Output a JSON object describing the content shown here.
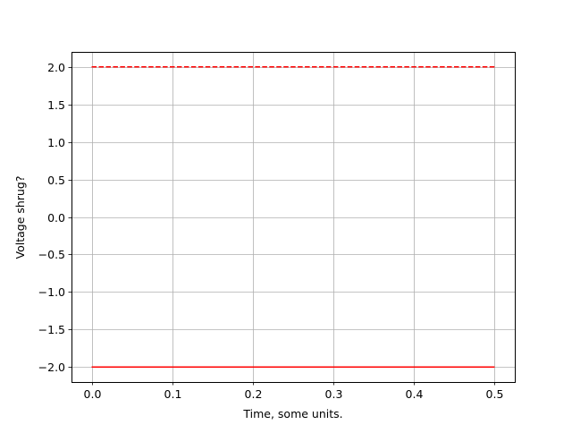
{
  "chart_data": {
    "type": "line",
    "title": "",
    "xlabel": "Time, some units.",
    "ylabel": "Voltage shrug?",
    "xlim": [
      -0.025,
      0.525
    ],
    "ylim": [
      -2.2,
      2.2
    ],
    "grid": true,
    "x_ticks": [
      "0.0",
      "0.1",
      "0.2",
      "0.3",
      "0.4",
      "0.5"
    ],
    "y_ticks": [
      "−2.0",
      "−1.5",
      "−1.0",
      "−0.5",
      "0.0",
      "0.5",
      "1.0",
      "1.5",
      "2.0"
    ],
    "x_tick_values": [
      0,
      0.1,
      0.2,
      0.3,
      0.4,
      0.5
    ],
    "y_tick_values": [
      -2,
      -1.5,
      -1,
      -0.5,
      0,
      0.5,
      1,
      1.5,
      2
    ],
    "series": [
      {
        "x": [
          0,
          0.5
        ],
        "y": [
          2,
          2
        ],
        "color": "#ff0000",
        "style": "dashed"
      },
      {
        "x": [
          0,
          0.5
        ],
        "y": [
          -2,
          -2
        ],
        "color": "#ff0000",
        "style": "solid"
      }
    ]
  }
}
